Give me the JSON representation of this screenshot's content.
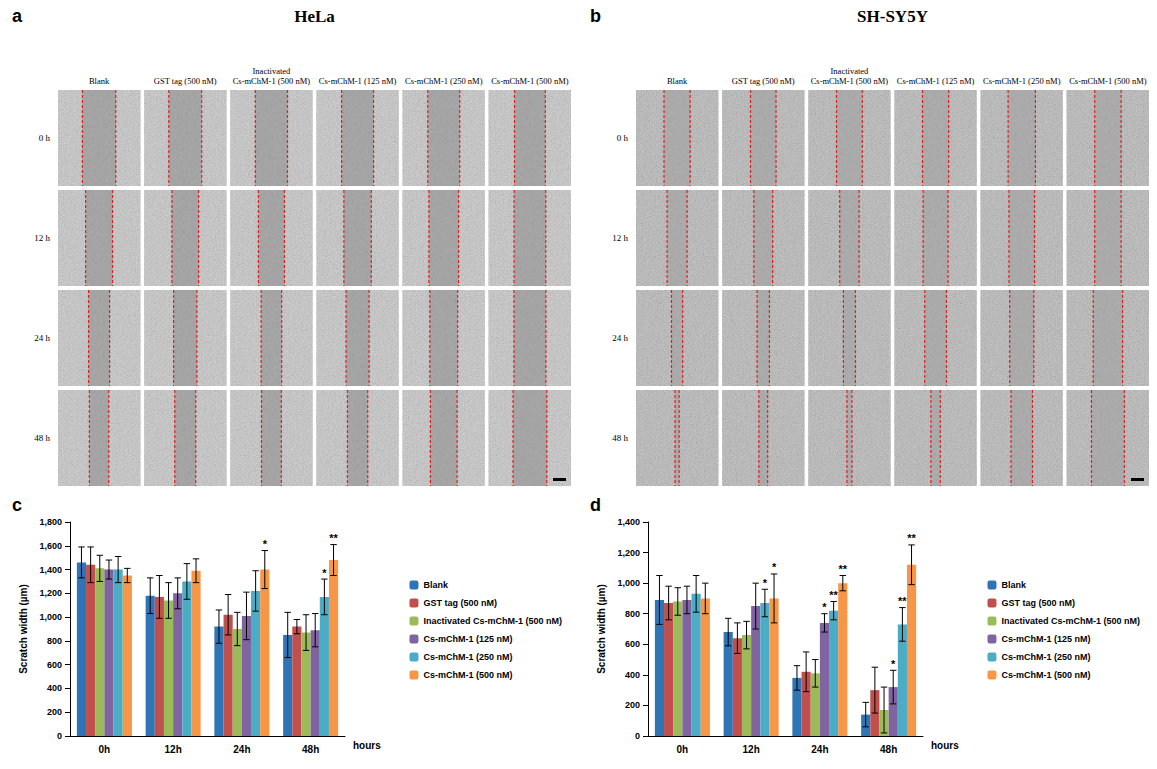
{
  "panels": [
    {
      "letter": "a",
      "title": "HeLa",
      "columns": [
        "Blank",
        "GST tag (500 nM)",
        "Inactivated Cs-mChM-1 (500 nM)",
        "Cs-mChM-1 (125 nM)",
        "Cs-mChM-1 (250 nM)",
        "Cs-mChM-1 (500 nM)"
      ],
      "rows": [
        "0 h",
        "12 h",
        "24 h",
        "48 h"
      ]
    },
    {
      "letter": "b",
      "title": "SH-SY5Y",
      "columns": [
        "Blank",
        "GST tag (500 nM)",
        "Inactivated Cs-mChM-1 (500 nM)",
        "Cs-mChM-1 (125 nM)",
        "Cs-mChM-1 (250 nM)",
        "Cs-mChM-1 (500 nM)"
      ],
      "rows": [
        "0 h",
        "12 h",
        "24 h",
        "48 h"
      ]
    }
  ],
  "chart_data": [
    {
      "type": "bar",
      "letter": "c",
      "y_label": "Scratch width (µm)",
      "x_label": "hours",
      "categories": [
        "0h",
        "12h",
        "24h",
        "48h"
      ],
      "ylim": [
        0,
        1800
      ],
      "yticks": [
        0,
        200,
        400,
        600,
        800,
        1000,
        1200,
        1400,
        1600,
        1800
      ],
      "grid": false,
      "legend": "right",
      "series": [
        {
          "name": "Blank",
          "color": "#2e75b6",
          "values": [
            1460,
            1180,
            920,
            850
          ],
          "errors": [
            130,
            150,
            140,
            190
          ],
          "significance": [
            null,
            null,
            null,
            null
          ]
        },
        {
          "name": "GST tag (500 nM)",
          "color": "#c0504d",
          "values": [
            1440,
            1170,
            1020,
            920
          ],
          "errors": [
            150,
            180,
            170,
            60
          ],
          "significance": [
            null,
            null,
            null,
            null
          ]
        },
        {
          "name": "Inactivated Cs-mChM-1 (500 nM)",
          "color": "#9bbb59",
          "values": [
            1410,
            1140,
            900,
            870
          ],
          "errors": [
            110,
            150,
            140,
            150
          ],
          "significance": [
            null,
            null,
            null,
            null
          ]
        },
        {
          "name": "Cs-mChM-1 (125 nM)",
          "color": "#8064a2",
          "values": [
            1400,
            1200,
            1010,
            890
          ],
          "errors": [
            80,
            130,
            200,
            140
          ],
          "significance": [
            null,
            null,
            null,
            null
          ]
        },
        {
          "name": "Cs-mChM-1 (250 nM)",
          "color": "#4bacc6",
          "values": [
            1400,
            1300,
            1220,
            1170
          ],
          "errors": [
            110,
            150,
            170,
            150
          ],
          "significance": [
            null,
            null,
            null,
            "*"
          ]
        },
        {
          "name": "Cs-mChM-1 (500 nM)",
          "color": "#f79646",
          "values": [
            1350,
            1390,
            1400,
            1480
          ],
          "errors": [
            60,
            100,
            160,
            130
          ],
          "significance": [
            null,
            null,
            "*",
            "**"
          ]
        }
      ]
    },
    {
      "type": "bar",
      "letter": "d",
      "y_label": "Scratch width (µm)",
      "x_label": "hours",
      "categories": [
        "0h",
        "12h",
        "24h",
        "48h"
      ],
      "ylim": [
        0,
        1400
      ],
      "yticks": [
        0,
        200,
        400,
        600,
        800,
        1000,
        1200,
        1400
      ],
      "grid": false,
      "legend": "right",
      "series": [
        {
          "name": "Blank",
          "color": "#2e75b6",
          "values": [
            890,
            680,
            380,
            140
          ],
          "errors": [
            160,
            90,
            80,
            80
          ],
          "significance": [
            null,
            null,
            null,
            null
          ]
        },
        {
          "name": "GST tag (500 nM)",
          "color": "#c0504d",
          "values": [
            870,
            640,
            420,
            300
          ],
          "errors": [
            110,
            100,
            130,
            150
          ],
          "significance": [
            null,
            null,
            null,
            null
          ]
        },
        {
          "name": "Inactivated Cs-mChM-1 (500 nM)",
          "color": "#9bbb59",
          "values": [
            880,
            660,
            410,
            170
          ],
          "errors": [
            90,
            90,
            90,
            150
          ],
          "significance": [
            null,
            null,
            null,
            null
          ]
        },
        {
          "name": "Cs-mChM-1 (125 nM)",
          "color": "#8064a2",
          "values": [
            890,
            850,
            740,
            320
          ],
          "errors": [
            90,
            150,
            60,
            110
          ],
          "significance": [
            null,
            null,
            "*",
            "*"
          ]
        },
        {
          "name": "Cs-mChM-1 (250 nM)",
          "color": "#4bacc6",
          "values": [
            930,
            870,
            820,
            730
          ],
          "errors": [
            120,
            90,
            60,
            110
          ],
          "significance": [
            null,
            "*",
            "**",
            "**"
          ]
        },
        {
          "name": "Cs-mChM-1 (500 nM)",
          "color": "#f79646",
          "values": [
            900,
            900,
            1000,
            1120
          ],
          "errors": [
            100,
            160,
            50,
            130
          ],
          "significance": [
            null,
            "*",
            "**",
            "**"
          ]
        }
      ]
    }
  ]
}
